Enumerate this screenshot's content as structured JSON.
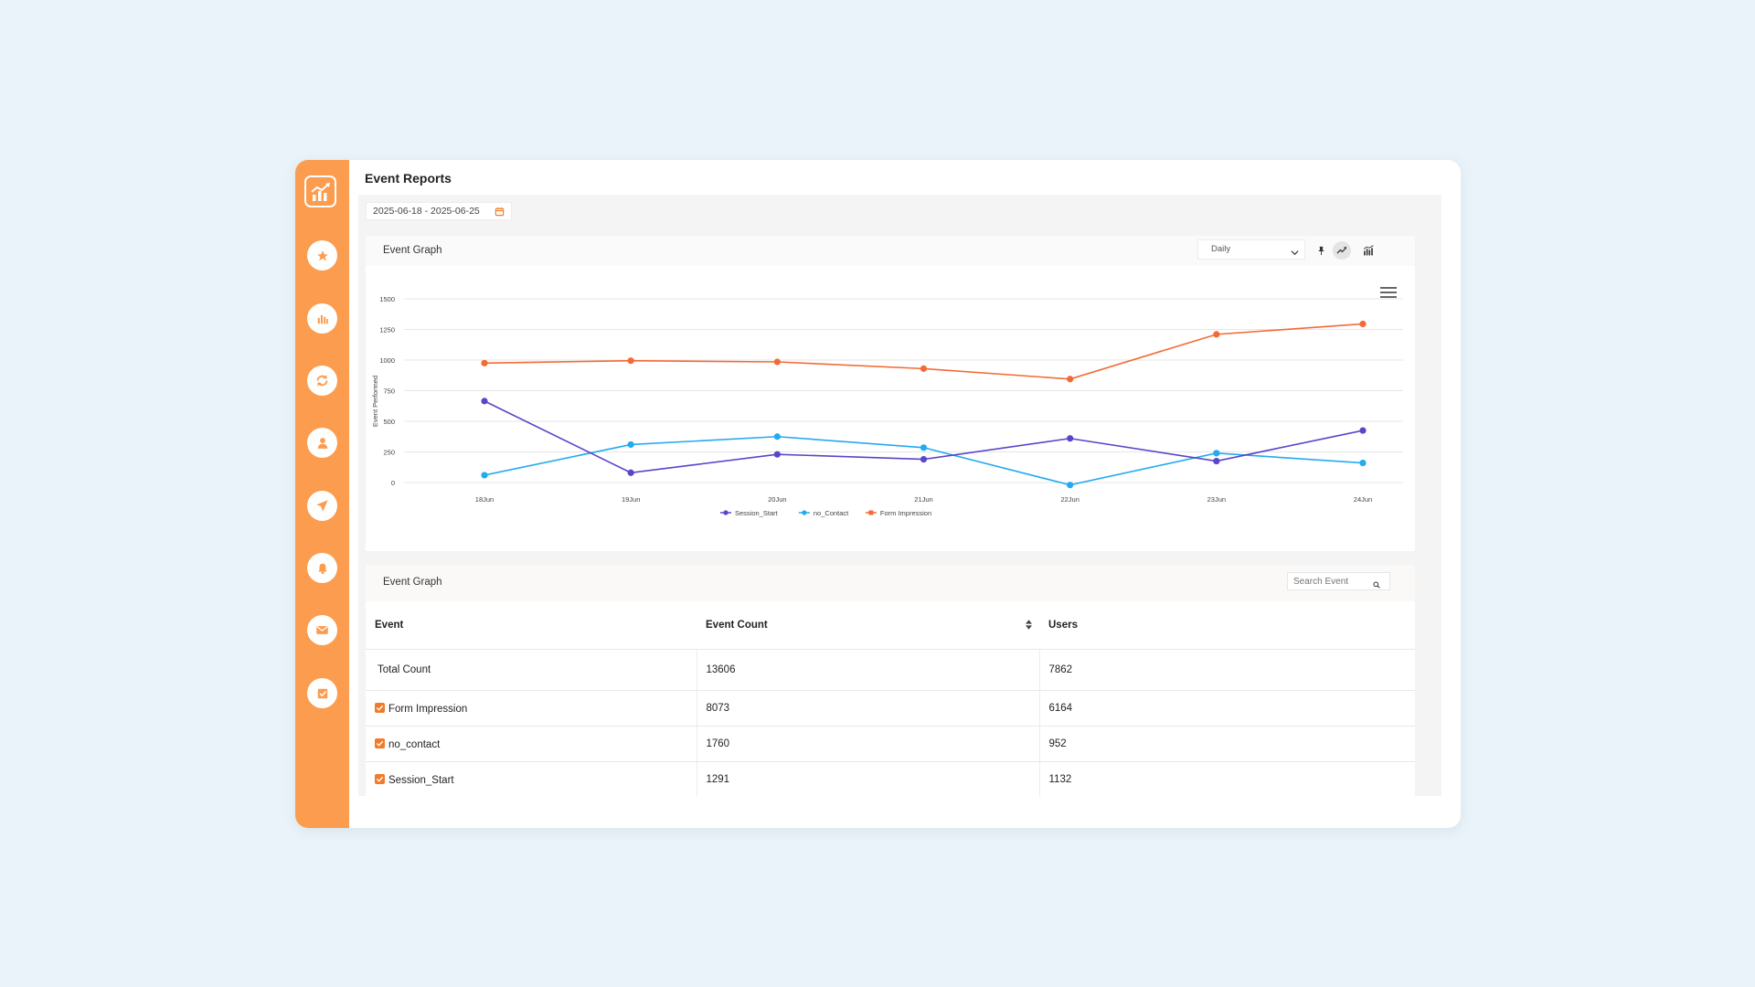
{
  "page": {
    "title": "Event Reports"
  },
  "date_range": {
    "value": "2025-06-18 - 2025-06-25"
  },
  "sidebar": {
    "items": [
      {
        "name": "star-icon"
      },
      {
        "name": "bar-chart-icon"
      },
      {
        "name": "refresh-icon"
      },
      {
        "name": "user-icon"
      },
      {
        "name": "send-icon"
      },
      {
        "name": "bell-icon"
      },
      {
        "name": "mail-icon"
      },
      {
        "name": "checkbox-icon"
      }
    ],
    "accent": "#fb9c4f"
  },
  "graph_card": {
    "title": "Event Graph",
    "period_select": {
      "value": "Daily"
    }
  },
  "chart_data": {
    "type": "line",
    "ylabel": "Event Performed",
    "ylim": [
      0,
      1500
    ],
    "yticks": [
      "0",
      "250",
      "500",
      "750",
      "1000",
      "1250",
      "1500"
    ],
    "categories": [
      "18Jun",
      "19Jun",
      "20Jun",
      "21Jun",
      "22Jun",
      "23Jun",
      "24Jun"
    ],
    "legend_position": "bottom",
    "grid": true,
    "series": [
      {
        "name": "Session_Start",
        "color": "#5b45c9",
        "values": [
          665,
          80,
          230,
          190,
          360,
          175,
          425
        ]
      },
      {
        "name": "no_Contact",
        "color": "#24aaf0",
        "values": [
          60,
          310,
          375,
          285,
          -20,
          240,
          160
        ]
      },
      {
        "name": "Form Impression",
        "color": "#f26b37",
        "values": [
          975,
          995,
          985,
          930,
          845,
          1210,
          1295
        ]
      }
    ]
  },
  "table_card": {
    "title": "Event Graph",
    "search_placeholder": "Search Event",
    "columns": [
      "Event",
      "Event Count",
      "Users"
    ],
    "total": {
      "label": "Total Count",
      "count": "13606",
      "users": "7862"
    },
    "rows": [
      {
        "event": "Form Impression",
        "count": "8073",
        "users": "6164"
      },
      {
        "event": "no_contact",
        "count": "1760",
        "users": "952"
      },
      {
        "event": "Session_Start",
        "count": "1291",
        "users": "1132"
      }
    ]
  }
}
